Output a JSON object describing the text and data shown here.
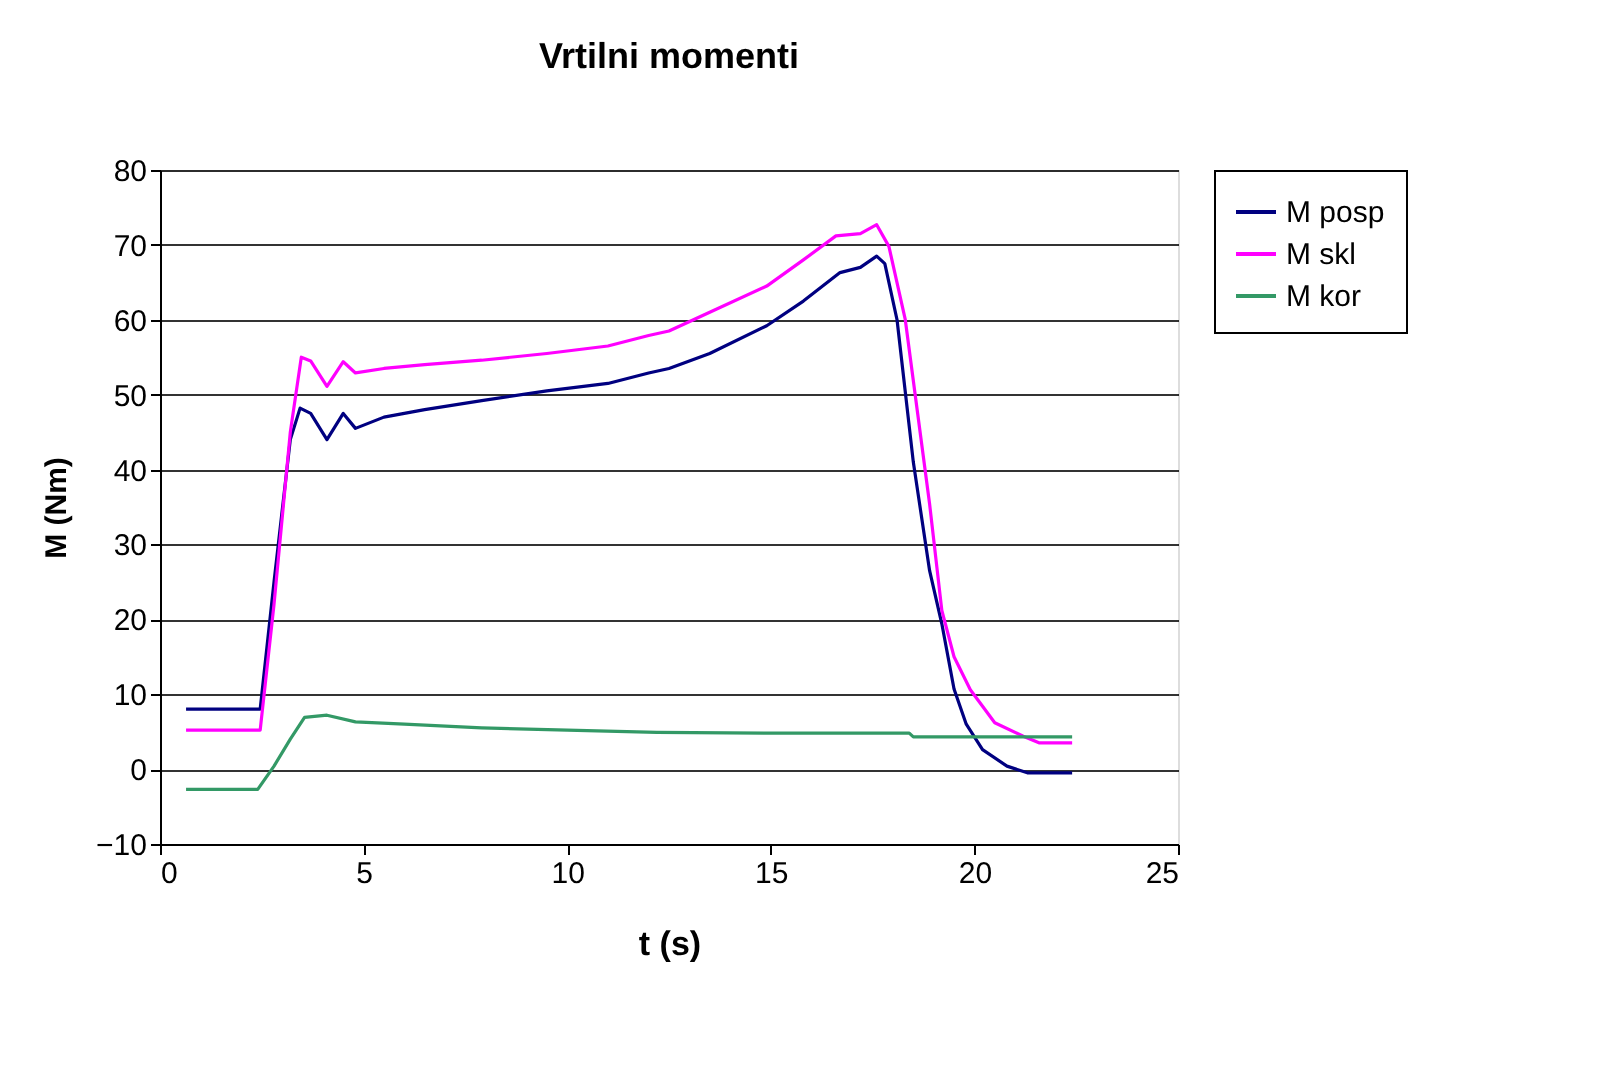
{
  "chart_data": {
    "type": "line",
    "title": "Vrtilni momenti",
    "xlabel": "t (s)",
    "ylabel": "M (Nm)",
    "xlim": [
      0,
      25
    ],
    "xticks": [
      0,
      5,
      10,
      15,
      20,
      25
    ],
    "ylim": [
      -10,
      80
    ],
    "yticks": [
      -10,
      0,
      10,
      20,
      30,
      40,
      50,
      60,
      70,
      80
    ],
    "grid": "y",
    "legend": "right",
    "marker": "none",
    "line_style": "solid",
    "series": [
      {
        "name": "M posp",
        "color": "#000080",
        "x": [
          0.64,
          2.46,
          2.8,
          3.2,
          3.44,
          3.7,
          4.1,
          4.5,
          4.8,
          5.5,
          6.5,
          7.9,
          9.5,
          11,
          12.0,
          12.5,
          13.5,
          14.9,
          15.8,
          16.7,
          17.2,
          17.6,
          17.8,
          18.1,
          18.5,
          18.9,
          19.2,
          19.5,
          19.8,
          20.2,
          20.8,
          21.3,
          22.4
        ],
        "values": [
          8,
          8,
          25,
          44,
          48.2,
          47.5,
          44,
          47.5,
          45.5,
          47,
          48,
          49.2,
          50.5,
          51.5,
          52.9,
          53.5,
          55.5,
          59.2,
          62.5,
          66.3,
          67,
          68.5,
          67.5,
          60,
          41,
          26.5,
          19.4,
          10.7,
          6,
          2.6,
          0.4,
          -0.5,
          -0.5
        ]
      },
      {
        "name": "M skl",
        "color": "#ff00ff",
        "x": [
          0.64,
          2.46,
          2.8,
          3.2,
          3.47,
          3.7,
          4.1,
          4.5,
          4.8,
          5.5,
          6.5,
          7.9,
          9.5,
          11,
          12.0,
          12.5,
          13.5,
          14.9,
          15.8,
          16.6,
          17.2,
          17.6,
          17.9,
          18.3,
          18.9,
          19.2,
          19.5,
          19.9,
          20.5,
          21.2,
          21.6,
          22.4
        ],
        "values": [
          5.2,
          5.2,
          22,
          45,
          55,
          54.5,
          51.1,
          54.4,
          52.9,
          53.5,
          54,
          54.6,
          55.5,
          56.5,
          57.9,
          58.5,
          61,
          64.5,
          68,
          71.2,
          71.5,
          72.7,
          69.8,
          60.1,
          35.4,
          21.2,
          15,
          10.6,
          6.2,
          4.4,
          3.5,
          3.5
        ]
      },
      {
        "name": "M kor",
        "color": "#339966",
        "x": [
          0.64,
          2.4,
          2.8,
          3.2,
          3.55,
          4.1,
          4.8,
          6,
          7.9,
          10,
          12.2,
          15,
          18.4,
          18.5,
          22.4
        ],
        "values": [
          -2.7,
          -2.7,
          0.4,
          4,
          6.9,
          7.2,
          6.3,
          6,
          5.5,
          5.2,
          4.9,
          4.8,
          4.8,
          4.3,
          4.3
        ]
      }
    ]
  }
}
